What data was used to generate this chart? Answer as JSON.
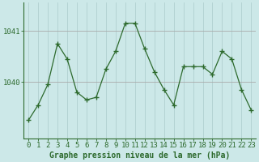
{
  "x": [
    0,
    1,
    2,
    3,
    4,
    5,
    6,
    7,
    8,
    9,
    10,
    11,
    12,
    13,
    14,
    15,
    16,
    17,
    18,
    19,
    20,
    21,
    22,
    23
  ],
  "y": [
    1039.25,
    1039.55,
    1039.95,
    1040.75,
    1040.45,
    1039.8,
    1039.65,
    1039.7,
    1040.25,
    1040.6,
    1041.15,
    1041.15,
    1040.65,
    1040.2,
    1039.85,
    1039.55,
    1040.3,
    1040.3,
    1040.3,
    1040.15,
    1040.6,
    1040.45,
    1039.85,
    1039.45
  ],
  "line_color": "#2d6a2d",
  "marker_color": "#2d6a2d",
  "bg_color": "#cce8e8",
  "grid_color_v": "#aacaca",
  "grid_color_h": "#aaaaaa",
  "axis_line_color": "#2d6a2d",
  "xlabel": "Graphe pression niveau de la mer (hPa)",
  "ytick_positions": [
    1040.0,
    1041.0
  ],
  "ytick_labels": [
    "1040",
    "1041"
  ],
  "ylim": [
    1038.9,
    1041.55
  ],
  "xlim": [
    -0.5,
    23.5
  ],
  "xlabel_fontsize": 7,
  "tick_fontsize": 6.5,
  "figsize": [
    3.2,
    2.0
  ],
  "dpi": 100
}
